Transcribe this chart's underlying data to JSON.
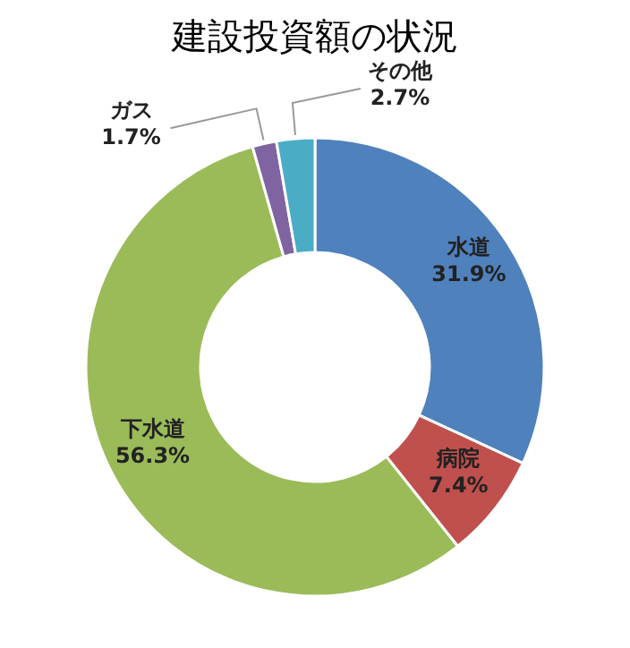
{
  "chart_data": {
    "type": "donut",
    "title": "建設投資額の状況",
    "categories": [
      "水道",
      "病院",
      "下水道",
      "ガス",
      "その他"
    ],
    "values": [
      31.9,
      7.4,
      56.3,
      1.7,
      2.7
    ],
    "colors": [
      "#4f81bd",
      "#c0504d",
      "#9bbb59",
      "#8064a2",
      "#4bacc6"
    ],
    "value_labels": [
      "31.9%",
      "7.4%",
      "56.3%",
      "1.7%",
      "2.7%"
    ],
    "legend": false
  }
}
